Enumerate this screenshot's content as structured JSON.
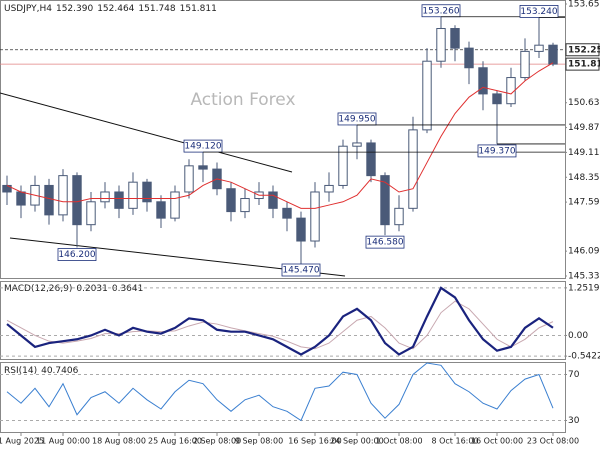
{
  "header": {
    "symbol": "USDJPY,H4",
    "open": "152.390",
    "high": "152.464",
    "low": "151.748",
    "close": "151.811"
  },
  "watermark": "Action Forex",
  "chart_data": [
    {
      "type": "candlestick",
      "color": "#4a5a78",
      "ma_color": "#e03030",
      "open": [
        148.1,
        147.9,
        147.5,
        148.1,
        147.2,
        148.4,
        146.9,
        147.6,
        147.9,
        147.4,
        148.2,
        147.6,
        147.1,
        147.9,
        148.7,
        148.6,
        148.0,
        147.3,
        147.7,
        147.9,
        147.4,
        147.1,
        146.4,
        147.9,
        148.1,
        149.3,
        149.4,
        148.4,
        146.9,
        147.4,
        149.8,
        151.9,
        152.9,
        152.3,
        151.7,
        150.9,
        150.6,
        151.4,
        152.2,
        152.39
      ],
      "high": [
        148.4,
        148.1,
        148.4,
        148.3,
        148.6,
        148.5,
        147.9,
        148.2,
        148.1,
        148.5,
        148.3,
        147.8,
        148.1,
        148.9,
        149.12,
        148.8,
        148.2,
        148.0,
        148.2,
        148.1,
        147.6,
        147.3,
        148.2,
        148.5,
        149.5,
        149.95,
        149.5,
        148.5,
        147.8,
        150.2,
        152.3,
        153.26,
        153.0,
        152.5,
        151.9,
        151.0,
        151.7,
        152.6,
        153.24,
        152.464
      ],
      "low": [
        147.5,
        147.1,
        147.3,
        146.9,
        147.0,
        146.2,
        146.7,
        147.4,
        147.1,
        147.2,
        147.3,
        146.8,
        147.0,
        147.7,
        148.2,
        147.8,
        147.0,
        147.1,
        147.5,
        147.1,
        146.7,
        145.47,
        146.2,
        147.6,
        148.0,
        148.9,
        148.2,
        146.58,
        146.7,
        147.3,
        149.7,
        151.7,
        151.9,
        151.2,
        150.4,
        149.37,
        150.5,
        151.3,
        152.0,
        151.748
      ],
      "close": [
        147.9,
        147.5,
        148.1,
        147.2,
        148.4,
        146.9,
        147.6,
        147.9,
        147.4,
        148.2,
        147.6,
        147.1,
        147.9,
        148.7,
        148.6,
        148.0,
        147.3,
        147.7,
        147.9,
        147.4,
        147.1,
        146.4,
        147.9,
        148.1,
        149.3,
        149.4,
        148.4,
        146.9,
        147.4,
        149.8,
        151.9,
        152.9,
        152.3,
        151.7,
        150.9,
        150.6,
        151.4,
        152.2,
        152.39,
        151.811
      ],
      "ma": [
        148.1,
        147.9,
        147.8,
        147.7,
        147.6,
        147.6,
        147.7,
        147.7,
        147.7,
        147.7,
        147.7,
        147.7,
        147.7,
        147.8,
        148.1,
        148.3,
        148.2,
        148.0,
        147.8,
        147.8,
        147.6,
        147.4,
        147.4,
        147.5,
        147.6,
        147.8,
        148.3,
        148.2,
        147.9,
        148.0,
        148.8,
        149.6,
        150.3,
        150.8,
        151.1,
        151.0,
        150.9,
        151.3,
        151.6,
        151.85
      ],
      "ylim": [
        145.33,
        153.65
      ],
      "yticks": [
        {
          "value": 153.65,
          "label": "153.650"
        },
        {
          "value": 150.63,
          "label": "150.630"
        },
        {
          "value": 149.87,
          "label": "149.870"
        },
        {
          "value": 149.11,
          "label": "149.110"
        },
        {
          "value": 148.35,
          "label": "148.350"
        },
        {
          "value": 147.59,
          "label": "147.590"
        },
        {
          "value": 146.09,
          "label": "146.090"
        },
        {
          "value": 145.33,
          "label": "145.330"
        }
      ],
      "annotations": [
        {
          "value": 153.26,
          "label": "153.260"
        },
        {
          "value": 153.24,
          "label": "153.240"
        },
        {
          "value": 149.95,
          "label": "149.950"
        },
        {
          "value": 149.12,
          "label": "149.120"
        },
        {
          "value": 149.37,
          "label": "149.370"
        },
        {
          "value": 146.58,
          "label": "146.580"
        },
        {
          "value": 146.2,
          "label": "146.200"
        },
        {
          "value": 145.47,
          "label": "145.470"
        }
      ],
      "price_levels": [
        {
          "value": 152.25,
          "label": "152.250"
        },
        {
          "value": 151.811,
          "label": "151.811"
        }
      ]
    },
    {
      "type": "macd",
      "title": "MACD(12,26,9)",
      "readout": [
        "0.2031",
        "0.3641"
      ],
      "series": [
        {
          "color": "#1a237e",
          "values": [
            0.3,
            0.0,
            -0.3,
            -0.2,
            -0.15,
            -0.1,
            0.0,
            0.15,
            0.0,
            0.2,
            0.1,
            0.05,
            0.2,
            0.45,
            0.4,
            0.15,
            0.1,
            0.1,
            0.0,
            -0.1,
            -0.3,
            -0.5,
            -0.3,
            0.0,
            0.5,
            0.7,
            0.4,
            -0.2,
            -0.5,
            -0.3,
            0.5,
            1.25,
            1.0,
            0.4,
            -0.1,
            -0.4,
            -0.3,
            0.2,
            0.45,
            0.2031
          ]
        },
        {
          "color": "#c8a8b0",
          "values": [
            0.4,
            0.2,
            0.0,
            -0.15,
            -0.2,
            -0.15,
            -0.08,
            0.05,
            0.05,
            0.1,
            0.12,
            0.1,
            0.12,
            0.25,
            0.35,
            0.3,
            0.2,
            0.12,
            0.05,
            -0.02,
            -0.15,
            -0.3,
            -0.35,
            -0.2,
            0.1,
            0.4,
            0.5,
            0.2,
            -0.2,
            -0.35,
            0.0,
            0.6,
            0.9,
            0.7,
            0.3,
            -0.1,
            -0.3,
            -0.1,
            0.2,
            0.3641
          ]
        }
      ],
      "ylim": [
        -0.645,
        1.406
      ],
      "yticks": [
        1.2519,
        {
          "value": 0,
          "label": "0.00"
        },
        -0.5422
      ]
    },
    {
      "type": "rsi",
      "title": "RSI(14)",
      "readout": "40.7406",
      "series": [
        {
          "color": "#3a7fd0",
          "values": [
            55,
            45,
            58,
            42,
            62,
            35,
            50,
            55,
            45,
            58,
            48,
            40,
            55,
            65,
            62,
            48,
            38,
            48,
            52,
            42,
            38,
            30,
            58,
            60,
            72,
            70,
            45,
            32,
            44,
            70,
            80,
            78,
            62,
            55,
            45,
            40,
            56,
            66,
            70,
            40.7406
          ]
        }
      ],
      "ylim": [
        20,
        80
      ],
      "yticks": [
        70,
        30
      ],
      "categories": [
        null,
        "1 Aug 2025",
        null,
        null,
        "11 Aug 00:00",
        null,
        null,
        null,
        "18 Aug 08:00",
        null,
        null,
        null,
        "25 Aug 16:00",
        null,
        null,
        "2 Sep 08:00",
        null,
        null,
        "9 Sep 08:00",
        null,
        null,
        null,
        "16 Sep 16:00",
        null,
        null,
        "24 Sep 00:00",
        null,
        null,
        "1 Oct 08:00",
        null,
        null,
        null,
        "8 Oct 16:00",
        null,
        null,
        "16 Oct 00:00",
        null,
        null,
        null,
        "23 Oct 08:00"
      ]
    }
  ]
}
